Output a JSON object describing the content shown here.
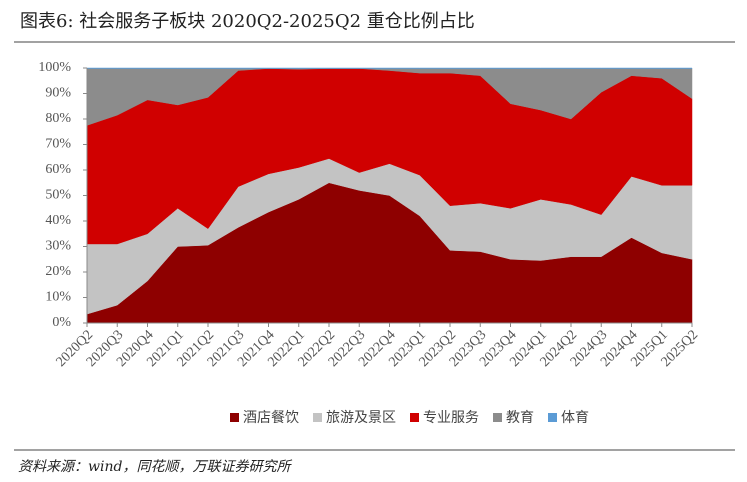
{
  "chart_data": {
    "type": "stacked-area",
    "title": "图表6:  社会服务子板块 2020Q2-2025Q2 重仓比例占比",
    "source": "资料来源：wind，同花顺，万联证券研究所",
    "categories": [
      "2020Q2",
      "2020Q3",
      "2020Q4",
      "2021Q1",
      "2021Q2",
      "2021Q3",
      "2021Q4",
      "2022Q1",
      "2022Q2",
      "2022Q3",
      "2022Q4",
      "2023Q1",
      "2023Q2",
      "2023Q3",
      "2023Q4",
      "2024Q1",
      "2024Q2",
      "2024Q3",
      "2024Q4",
      "2025Q1",
      "2025Q2"
    ],
    "series": [
      {
        "name": "酒店餐饮",
        "color": "#8e0000",
        "values": [
          3.5,
          7,
          16.5,
          30,
          30.5,
          37.5,
          43.5,
          48.5,
          55,
          52,
          50,
          42,
          28.5,
          28,
          25,
          24.5,
          26,
          26,
          33.5,
          27.5,
          25
        ]
      },
      {
        "name": "旅游及景区",
        "color": "#c3c3c3",
        "values": [
          27.5,
          24,
          18.5,
          15,
          6.5,
          16,
          15,
          12.5,
          9.5,
          7,
          12.5,
          16,
          17.5,
          19,
          20,
          24,
          20.5,
          16.5,
          24,
          26.5,
          29
        ]
      },
      {
        "name": "专业服务",
        "color": "#d00000",
        "values": [
          46.5,
          50.5,
          52.5,
          40.5,
          51.5,
          45.5,
          41.3,
          38.5,
          35.3,
          40.8,
          36.5,
          40,
          52,
          50,
          41,
          35,
          33.5,
          48,
          39.5,
          42,
          34
        ]
      },
      {
        "name": "教育",
        "color": "#8c8c8c",
        "values": [
          22.3,
          18.3,
          12.3,
          14.3,
          11.3,
          0.8,
          0,
          0.3,
          0,
          0,
          0.8,
          1.8,
          1.8,
          2.8,
          13.8,
          16.3,
          19.8,
          9.3,
          2.8,
          3.8,
          11.8
        ]
      },
      {
        "name": "体育",
        "color": "#5b9bd5",
        "values": [
          0.2,
          0.2,
          0.2,
          0.2,
          0.2,
          0.2,
          0.2,
          0.2,
          0.2,
          0.2,
          0.2,
          0.2,
          0.2,
          0.2,
          0.2,
          0.2,
          0.2,
          0.2,
          0.2,
          0.2,
          0.2
        ]
      }
    ],
    "ylim": [
      0,
      100
    ],
    "yticks": [
      {
        "value": 0,
        "label": "0%"
      },
      {
        "value": 10,
        "label": "10%"
      },
      {
        "value": 20,
        "label": "20%"
      },
      {
        "value": 30,
        "label": "30%"
      },
      {
        "value": 40,
        "label": "40%"
      },
      {
        "value": 50,
        "label": "50%"
      },
      {
        "value": 60,
        "label": "60%"
      },
      {
        "value": 70,
        "label": "70%"
      },
      {
        "value": 80,
        "label": "80%"
      },
      {
        "value": 90,
        "label": "90%"
      },
      {
        "value": 100,
        "label": "100%"
      }
    ],
    "legend": "bottom"
  }
}
